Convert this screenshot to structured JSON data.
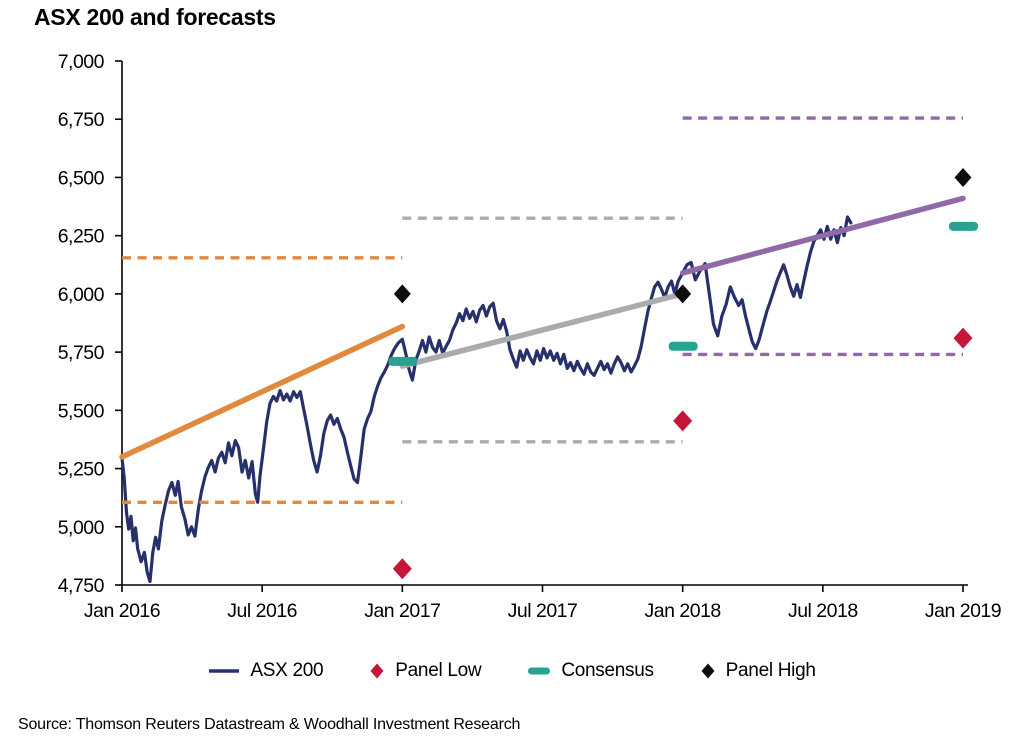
{
  "title": "ASX 200 and forecasts",
  "source": "Source: Thomson Reuters Datastream & Woodhall Investment Research",
  "legend": [
    {
      "label": "ASX 200",
      "swatch": "line",
      "color": "#27306B"
    },
    {
      "label": "Panel Low",
      "swatch": "diamond",
      "color": "#C41638"
    },
    {
      "label": "Consensus",
      "swatch": "dash",
      "color": "#28A391"
    },
    {
      "label": "Panel High",
      "swatch": "diamond",
      "color": "#0D0D0D"
    }
  ],
  "chart_data": {
    "type": "line",
    "title": "ASX 200 and forecasts",
    "xlabel": "",
    "ylabel": "",
    "grid": false,
    "x_axis": {
      "min": 2016.0,
      "max": 2019.0,
      "ticks": [
        {
          "t": 2016.0,
          "label": "Jan 2016"
        },
        {
          "t": 2016.5,
          "label": "Jul 2016"
        },
        {
          "t": 2017.0,
          "label": "Jan 2017"
        },
        {
          "t": 2017.5,
          "label": "Jul 2017"
        },
        {
          "t": 2018.0,
          "label": "Jan 2018"
        },
        {
          "t": 2018.5,
          "label": "Jul 2018"
        },
        {
          "t": 2019.0,
          "label": "Jan 2019"
        }
      ]
    },
    "y_axis": {
      "min": 4750,
      "max": 7000,
      "step": 250,
      "ticks": [
        {
          "v": 7000,
          "label": "7,000"
        },
        {
          "v": 6750,
          "label": "6,750"
        },
        {
          "v": 6500,
          "label": "6,500"
        },
        {
          "v": 6250,
          "label": "6,250"
        },
        {
          "v": 6000,
          "label": "6,000"
        },
        {
          "v": 5750,
          "label": "5,750"
        },
        {
          "v": 5500,
          "label": "5,500"
        },
        {
          "v": 5250,
          "label": "5,250"
        },
        {
          "v": 5000,
          "label": "5,000"
        },
        {
          "v": 4750,
          "label": "4,750"
        }
      ]
    },
    "series": {
      "name": "ASX 200",
      "color": "#27306B",
      "points": [
        [
          2016.0,
          5295
        ],
        [
          2016.008,
          5210
        ],
        [
          2016.016,
          5060
        ],
        [
          2016.024,
          4990
        ],
        [
          2016.032,
          5045
        ],
        [
          2016.04,
          4940
        ],
        [
          2016.048,
          4995
        ],
        [
          2016.056,
          4905
        ],
        [
          2016.068,
          4850
        ],
        [
          2016.08,
          4890
        ],
        [
          2016.09,
          4805
        ],
        [
          2016.1,
          4765
        ],
        [
          2016.11,
          4890
        ],
        [
          2016.12,
          4955
        ],
        [
          2016.13,
          4905
        ],
        [
          2016.142,
          5025
        ],
        [
          2016.154,
          5095
        ],
        [
          2016.166,
          5155
        ],
        [
          2016.178,
          5190
        ],
        [
          2016.19,
          5135
        ],
        [
          2016.2,
          5195
        ],
        [
          2016.212,
          5085
        ],
        [
          2016.224,
          5035
        ],
        [
          2016.236,
          4965
        ],
        [
          2016.248,
          5000
        ],
        [
          2016.26,
          4960
        ],
        [
          2016.272,
          5075
        ],
        [
          2016.284,
          5155
        ],
        [
          2016.296,
          5215
        ],
        [
          2016.308,
          5255
        ],
        [
          2016.32,
          5285
        ],
        [
          2016.332,
          5235
        ],
        [
          2016.344,
          5295
        ],
        [
          2016.356,
          5320
        ],
        [
          2016.368,
          5275
        ],
        [
          2016.38,
          5360
        ],
        [
          2016.392,
          5305
        ],
        [
          2016.404,
          5370
        ],
        [
          2016.416,
          5340
        ],
        [
          2016.428,
          5235
        ],
        [
          2016.44,
          5285
        ],
        [
          2016.452,
          5210
        ],
        [
          2016.464,
          5280
        ],
        [
          2016.476,
          5140
        ],
        [
          2016.484,
          5105
        ],
        [
          2016.492,
          5215
        ],
        [
          2016.504,
          5330
        ],
        [
          2016.516,
          5450
        ],
        [
          2016.528,
          5530
        ],
        [
          2016.54,
          5560
        ],
        [
          2016.552,
          5540
        ],
        [
          2016.564,
          5585
        ],
        [
          2016.576,
          5545
        ],
        [
          2016.588,
          5570
        ],
        [
          2016.6,
          5540
        ],
        [
          2016.612,
          5580
        ],
        [
          2016.624,
          5555
        ],
        [
          2016.636,
          5580
        ],
        [
          2016.648,
          5505
        ],
        [
          2016.66,
          5435
        ],
        [
          2016.672,
          5355
        ],
        [
          2016.684,
          5285
        ],
        [
          2016.696,
          5235
        ],
        [
          2016.708,
          5305
        ],
        [
          2016.72,
          5400
        ],
        [
          2016.732,
          5455
        ],
        [
          2016.744,
          5480
        ],
        [
          2016.756,
          5440
        ],
        [
          2016.768,
          5465
        ],
        [
          2016.78,
          5420
        ],
        [
          2016.792,
          5385
        ],
        [
          2016.804,
          5320
        ],
        [
          2016.816,
          5260
        ],
        [
          2016.828,
          5205
        ],
        [
          2016.84,
          5190
        ],
        [
          2016.852,
          5300
        ],
        [
          2016.864,
          5420
        ],
        [
          2016.876,
          5465
        ],
        [
          2016.888,
          5495
        ],
        [
          2016.9,
          5560
        ],
        [
          2016.912,
          5605
        ],
        [
          2016.924,
          5640
        ],
        [
          2016.936,
          5665
        ],
        [
          2016.948,
          5695
        ],
        [
          2016.96,
          5735
        ],
        [
          2016.972,
          5765
        ],
        [
          2016.986,
          5790
        ],
        [
          2017.0,
          5805
        ],
        [
          2017.012,
          5745
        ],
        [
          2017.024,
          5675
        ],
        [
          2017.036,
          5630
        ],
        [
          2017.048,
          5715
        ],
        [
          2017.06,
          5755
        ],
        [
          2017.072,
          5800
        ],
        [
          2017.084,
          5750
        ],
        [
          2017.096,
          5815
        ],
        [
          2017.108,
          5770
        ],
        [
          2017.12,
          5750
        ],
        [
          2017.132,
          5800
        ],
        [
          2017.144,
          5745
        ],
        [
          2017.156,
          5775
        ],
        [
          2017.168,
          5800
        ],
        [
          2017.18,
          5845
        ],
        [
          2017.192,
          5875
        ],
        [
          2017.204,
          5915
        ],
        [
          2017.216,
          5885
        ],
        [
          2017.228,
          5935
        ],
        [
          2017.24,
          5895
        ],
        [
          2017.252,
          5925
        ],
        [
          2017.264,
          5880
        ],
        [
          2017.276,
          5930
        ],
        [
          2017.288,
          5950
        ],
        [
          2017.3,
          5905
        ],
        [
          2017.312,
          5945
        ],
        [
          2017.324,
          5960
        ],
        [
          2017.336,
          5885
        ],
        [
          2017.348,
          5850
        ],
        [
          2017.36,
          5890
        ],
        [
          2017.372,
          5840
        ],
        [
          2017.384,
          5760
        ],
        [
          2017.396,
          5720
        ],
        [
          2017.408,
          5685
        ],
        [
          2017.42,
          5755
        ],
        [
          2017.432,
          5715
        ],
        [
          2017.444,
          5760
        ],
        [
          2017.456,
          5725
        ],
        [
          2017.468,
          5700
        ],
        [
          2017.48,
          5755
        ],
        [
          2017.492,
          5715
        ],
        [
          2017.504,
          5765
        ],
        [
          2017.516,
          5725
        ],
        [
          2017.528,
          5755
        ],
        [
          2017.54,
          5715
        ],
        [
          2017.552,
          5745
        ],
        [
          2017.564,
          5700
        ],
        [
          2017.576,
          5740
        ],
        [
          2017.588,
          5680
        ],
        [
          2017.6,
          5705
        ],
        [
          2017.612,
          5670
        ],
        [
          2017.624,
          5710
        ],
        [
          2017.636,
          5680
        ],
        [
          2017.648,
          5655
        ],
        [
          2017.66,
          5700
        ],
        [
          2017.672,
          5665
        ],
        [
          2017.684,
          5650
        ],
        [
          2017.696,
          5680
        ],
        [
          2017.708,
          5710
        ],
        [
          2017.72,
          5675
        ],
        [
          2017.732,
          5700
        ],
        [
          2017.744,
          5660
        ],
        [
          2017.756,
          5700
        ],
        [
          2017.768,
          5730
        ],
        [
          2017.78,
          5705
        ],
        [
          2017.792,
          5670
        ],
        [
          2017.804,
          5700
        ],
        [
          2017.816,
          5665
        ],
        [
          2017.828,
          5690
        ],
        [
          2017.84,
          5720
        ],
        [
          2017.852,
          5775
        ],
        [
          2017.864,
          5850
        ],
        [
          2017.876,
          5925
        ],
        [
          2017.888,
          5980
        ],
        [
          2017.9,
          6030
        ],
        [
          2017.912,
          6050
        ],
        [
          2017.924,
          6020
        ],
        [
          2017.936,
          5985
        ],
        [
          2017.948,
          6030
        ],
        [
          2017.96,
          6055
        ],
        [
          2017.972,
          6000
        ],
        [
          2017.984,
          6055
        ],
        [
          2018.0,
          6090
        ],
        [
          2018.015,
          6125
        ],
        [
          2018.03,
          6135
        ],
        [
          2018.045,
          6060
        ],
        [
          2018.06,
          6095
        ],
        [
          2018.08,
          6130
        ],
        [
          2018.095,
          6000
        ],
        [
          2018.11,
          5870
        ],
        [
          2018.125,
          5820
        ],
        [
          2018.14,
          5905
        ],
        [
          2018.155,
          5955
        ],
        [
          2018.17,
          6030
        ],
        [
          2018.185,
          5985
        ],
        [
          2018.2,
          5950
        ],
        [
          2018.212,
          5975
        ],
        [
          2018.224,
          5905
        ],
        [
          2018.236,
          5850
        ],
        [
          2018.248,
          5795
        ],
        [
          2018.26,
          5765
        ],
        [
          2018.272,
          5800
        ],
        [
          2018.284,
          5855
        ],
        [
          2018.3,
          5925
        ],
        [
          2018.312,
          5965
        ],
        [
          2018.324,
          6010
        ],
        [
          2018.336,
          6055
        ],
        [
          2018.348,
          6090
        ],
        [
          2018.36,
          6125
        ],
        [
          2018.372,
          6080
        ],
        [
          2018.384,
          6030
        ],
        [
          2018.396,
          5990
        ],
        [
          2018.408,
          6040
        ],
        [
          2018.42,
          5985
        ],
        [
          2018.432,
          6055
        ],
        [
          2018.444,
          6120
        ],
        [
          2018.456,
          6180
        ],
        [
          2018.468,
          6225
        ],
        [
          2018.48,
          6250
        ],
        [
          2018.492,
          6275
        ],
        [
          2018.504,
          6235
        ],
        [
          2018.516,
          6290
        ],
        [
          2018.528,
          6235
        ],
        [
          2018.54,
          6275
        ],
        [
          2018.552,
          6220
        ],
        [
          2018.564,
          6285
        ],
        [
          2018.576,
          6250
        ],
        [
          2018.588,
          6330
        ],
        [
          2018.6,
          6305
        ]
      ]
    },
    "forecasts": [
      {
        "year": "2016",
        "color": "#E08A3E",
        "span": [
          2016.0,
          2017.0
        ],
        "panel_high_line": 6155,
        "panel_low_line": 5105,
        "consensus_path": {
          "from": [
            2016.0,
            5300
          ],
          "to": [
            2017.0,
            5860
          ]
        }
      },
      {
        "year": "2017",
        "color": "#ABABAB",
        "span": [
          2017.0,
          2018.0
        ],
        "panel_high_line": 6325,
        "panel_low_line": 5365,
        "consensus_path": {
          "from": [
            2017.0,
            5690
          ],
          "to": [
            2018.0,
            6000
          ]
        }
      },
      {
        "year": "2018",
        "color": "#9168A8",
        "span": [
          2018.0,
          2019.0
        ],
        "panel_high_line": 6755,
        "panel_low_line": 5740,
        "consensus_path": {
          "from": [
            2018.0,
            6090
          ],
          "to": [
            2019.0,
            6410
          ]
        }
      }
    ],
    "markers": [
      {
        "for_year": "2016",
        "t": 2017.0,
        "panel_high": 6000,
        "consensus": 5710,
        "panel_low": 4820
      },
      {
        "for_year": "2017",
        "t": 2018.0,
        "panel_high": 6000,
        "consensus": 5775,
        "panel_low": 5455
      },
      {
        "for_year": "2018",
        "t": 2019.0,
        "panel_high": 6500,
        "consensus": 6290,
        "panel_low": 5810
      }
    ],
    "marker_colors": {
      "panel_high": "#0D0D0D",
      "consensus": "#28A391",
      "panel_low": "#C41638"
    }
  }
}
